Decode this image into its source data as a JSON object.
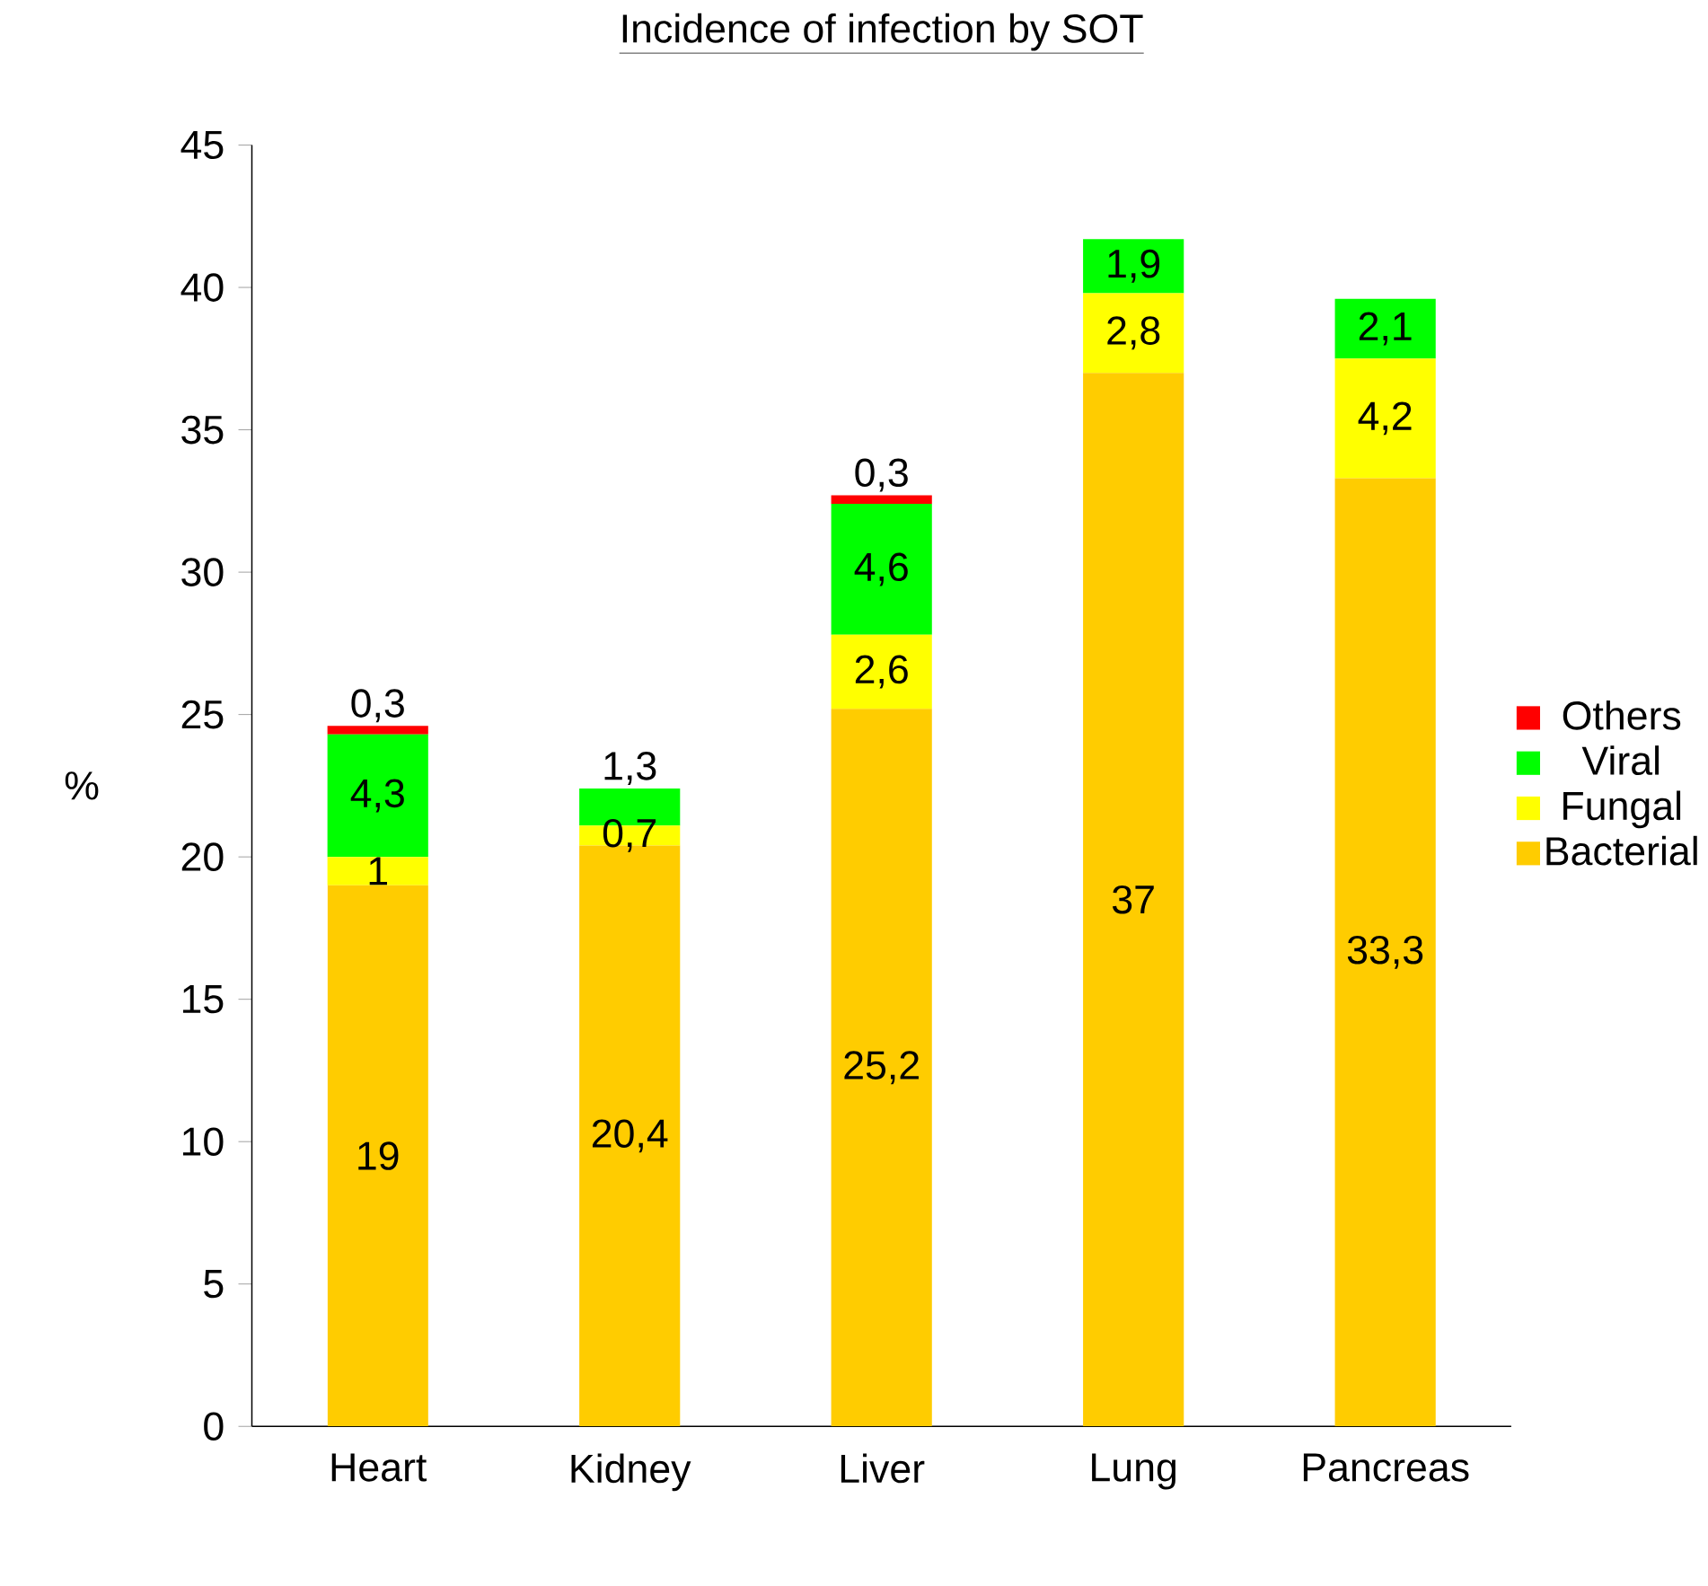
{
  "chart_data": {
    "type": "bar",
    "stacked": true,
    "title": "Incidence of infection by SOT",
    "ylabel": "%",
    "categories": [
      "Heart",
      "Kidney",
      "Liver",
      "Lung",
      "Pancreas"
    ],
    "ylim": [
      0,
      45
    ],
    "yticks": [
      0,
      5,
      10,
      15,
      20,
      25,
      30,
      35,
      40,
      45
    ],
    "grid": false,
    "legend": "right",
    "series": [
      {
        "name": "Bacterial",
        "color": "#ffcc00",
        "values": [
          19,
          20.4,
          25.2,
          37,
          33.3
        ],
        "value_labels": [
          "19",
          "20,4",
          "25,2",
          "37",
          "33,3"
        ]
      },
      {
        "name": "Fungal",
        "color": "#ffff00",
        "values": [
          1,
          0.7,
          2.6,
          2.8,
          4.2
        ],
        "value_labels": [
          "1",
          "0,7",
          "2,6",
          "2,8",
          "4,2"
        ]
      },
      {
        "name": "Viral",
        "color": "#00ff00",
        "values": [
          4.3,
          1.3,
          4.6,
          1.9,
          2.1
        ],
        "value_labels": [
          "4,3",
          "1,3",
          "4,6",
          "1,9",
          "2,1"
        ]
      },
      {
        "name": "Others",
        "color": "#ff0000",
        "values": [
          0.3,
          null,
          0.3,
          null,
          null
        ],
        "value_labels": [
          "0,3",
          null,
          "0,3",
          null,
          null
        ]
      }
    ]
  }
}
